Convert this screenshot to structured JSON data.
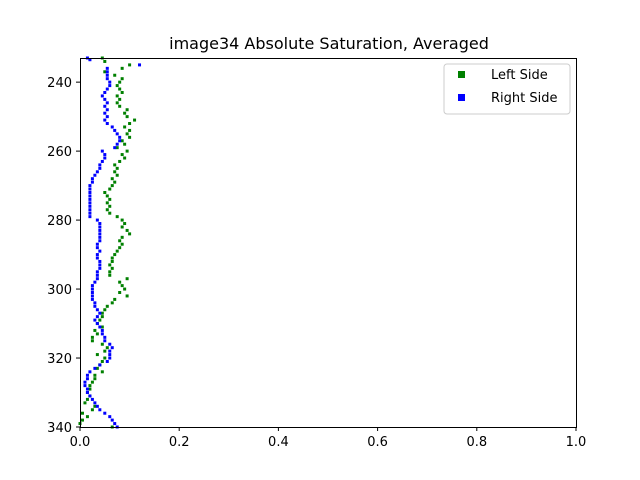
{
  "chart_data": {
    "type": "scatter",
    "title": "image34 Absolute Saturation, Averaged",
    "xlabel": "",
    "ylabel": "",
    "xlim": [
      0.0,
      1.0
    ],
    "ylim": [
      340,
      233
    ],
    "y_inverted": true,
    "grid": false,
    "legend_position": "top-right",
    "x_ticks": [
      0.0,
      0.2,
      0.4,
      0.6,
      0.8,
      1.0
    ],
    "x_tick_labels": [
      "0.0",
      "0.2",
      "0.4",
      "0.6",
      "0.8",
      "1.0"
    ],
    "y_ticks": [
      240,
      260,
      280,
      300,
      320,
      340
    ],
    "y_tick_labels": [
      "240",
      "260",
      "280",
      "300",
      "320",
      "340"
    ],
    "series": [
      {
        "name": "Left Side",
        "color": "#008000",
        "marker": "square",
        "points": [
          [
            0.045,
            233
          ],
          [
            0.05,
            234
          ],
          [
            0.1,
            235
          ],
          [
            0.085,
            236
          ],
          [
            0.05,
            237
          ],
          [
            0.07,
            238
          ],
          [
            0.085,
            239
          ],
          [
            0.08,
            240
          ],
          [
            0.075,
            241
          ],
          [
            0.08,
            242
          ],
          [
            0.085,
            243
          ],
          [
            0.075,
            244
          ],
          [
            0.08,
            245
          ],
          [
            0.075,
            246
          ],
          [
            0.08,
            247
          ],
          [
            0.095,
            248
          ],
          [
            0.09,
            249
          ],
          [
            0.095,
            250
          ],
          [
            0.11,
            251
          ],
          [
            0.1,
            252
          ],
          [
            0.09,
            253
          ],
          [
            0.1,
            254
          ],
          [
            0.095,
            255
          ],
          [
            0.1,
            256
          ],
          [
            0.085,
            257
          ],
          [
            0.09,
            258
          ],
          [
            0.075,
            259
          ],
          [
            0.095,
            260
          ],
          [
            0.085,
            261
          ],
          [
            0.09,
            262
          ],
          [
            0.08,
            263
          ],
          [
            0.07,
            264
          ],
          [
            0.075,
            265
          ],
          [
            0.07,
            266
          ],
          [
            0.075,
            267
          ],
          [
            0.065,
            268
          ],
          [
            0.07,
            269
          ],
          [
            0.065,
            270
          ],
          [
            0.06,
            271
          ],
          [
            0.05,
            272
          ],
          [
            0.055,
            273
          ],
          [
            0.06,
            274
          ],
          [
            0.055,
            275
          ],
          [
            0.06,
            276
          ],
          [
            0.055,
            277
          ],
          [
            0.06,
            278
          ],
          [
            0.075,
            279
          ],
          [
            0.085,
            280
          ],
          [
            0.09,
            281
          ],
          [
            0.085,
            282
          ],
          [
            0.095,
            283
          ],
          [
            0.1,
            284
          ],
          [
            0.085,
            285
          ],
          [
            0.08,
            286
          ],
          [
            0.085,
            287
          ],
          [
            0.08,
            288
          ],
          [
            0.075,
            289
          ],
          [
            0.07,
            290
          ],
          [
            0.065,
            291
          ],
          [
            0.065,
            292
          ],
          [
            0.06,
            293
          ],
          [
            0.065,
            294
          ],
          [
            0.06,
            295
          ],
          [
            0.06,
            296
          ],
          [
            0.095,
            297
          ],
          [
            0.08,
            298
          ],
          [
            0.085,
            299
          ],
          [
            0.09,
            300
          ],
          [
            0.08,
            301
          ],
          [
            0.095,
            302
          ],
          [
            0.07,
            303
          ],
          [
            0.065,
            304
          ],
          [
            0.055,
            305
          ],
          [
            0.05,
            306
          ],
          [
            0.045,
            307
          ],
          [
            0.045,
            308
          ],
          [
            0.04,
            309
          ],
          [
            0.035,
            310
          ],
          [
            0.045,
            311
          ],
          [
            0.03,
            312
          ],
          [
            0.035,
            313
          ],
          [
            0.025,
            314
          ],
          [
            0.025,
            315
          ],
          [
            0.045,
            316
          ],
          [
            0.055,
            317
          ],
          [
            0.05,
            318
          ],
          [
            0.035,
            319
          ],
          [
            0.05,
            320
          ],
          [
            0.045,
            321
          ],
          [
            0.04,
            322
          ],
          [
            0.035,
            323
          ],
          [
            0.045,
            324
          ],
          [
            0.03,
            325
          ],
          [
            0.03,
            326
          ],
          [
            0.025,
            327
          ],
          [
            0.02,
            328
          ],
          [
            0.02,
            329
          ],
          [
            0.015,
            330
          ],
          [
            0.02,
            331
          ],
          [
            0.015,
            332
          ],
          [
            0.01,
            333
          ],
          [
            0.03,
            334
          ],
          [
            0.025,
            335
          ],
          [
            0.005,
            336
          ],
          [
            0.015,
            337
          ],
          [
            0.005,
            338
          ],
          [
            0.0,
            339
          ],
          [
            0.065,
            340
          ]
        ]
      },
      {
        "name": "Right Side",
        "color": "#0000ff",
        "marker": "square",
        "points": [
          [
            0.015,
            233
          ],
          [
            0.02,
            233.5
          ],
          [
            0.12,
            235
          ],
          [
            0.055,
            236
          ],
          [
            0.055,
            237
          ],
          [
            0.055,
            238
          ],
          [
            0.055,
            239
          ],
          [
            0.06,
            240
          ],
          [
            0.06,
            241
          ],
          [
            0.055,
            242
          ],
          [
            0.05,
            243
          ],
          [
            0.045,
            244
          ],
          [
            0.05,
            245
          ],
          [
            0.055,
            246
          ],
          [
            0.05,
            247
          ],
          [
            0.055,
            248
          ],
          [
            0.05,
            249
          ],
          [
            0.055,
            250
          ],
          [
            0.05,
            251
          ],
          [
            0.055,
            252
          ],
          [
            0.065,
            253
          ],
          [
            0.07,
            254
          ],
          [
            0.075,
            255
          ],
          [
            0.08,
            256
          ],
          [
            0.08,
            257
          ],
          [
            0.075,
            258
          ],
          [
            0.07,
            259
          ],
          [
            0.045,
            260
          ],
          [
            0.05,
            261
          ],
          [
            0.05,
            262
          ],
          [
            0.045,
            263
          ],
          [
            0.04,
            264
          ],
          [
            0.04,
            265
          ],
          [
            0.035,
            266
          ],
          [
            0.03,
            267
          ],
          [
            0.025,
            268
          ],
          [
            0.025,
            269
          ],
          [
            0.02,
            270
          ],
          [
            0.02,
            271
          ],
          [
            0.02,
            272
          ],
          [
            0.02,
            273
          ],
          [
            0.02,
            274
          ],
          [
            0.02,
            275
          ],
          [
            0.02,
            276
          ],
          [
            0.02,
            277
          ],
          [
            0.02,
            278
          ],
          [
            0.02,
            279
          ],
          [
            0.035,
            280
          ],
          [
            0.04,
            281
          ],
          [
            0.04,
            282
          ],
          [
            0.04,
            283
          ],
          [
            0.04,
            284
          ],
          [
            0.04,
            285
          ],
          [
            0.04,
            286
          ],
          [
            0.035,
            287
          ],
          [
            0.035,
            288
          ],
          [
            0.04,
            289
          ],
          [
            0.035,
            290
          ],
          [
            0.035,
            291
          ],
          [
            0.04,
            292
          ],
          [
            0.04,
            293
          ],
          [
            0.04,
            294
          ],
          [
            0.035,
            295
          ],
          [
            0.035,
            296
          ],
          [
            0.035,
            297
          ],
          [
            0.03,
            298
          ],
          [
            0.025,
            299
          ],
          [
            0.025,
            300
          ],
          [
            0.025,
            301
          ],
          [
            0.025,
            302
          ],
          [
            0.025,
            303
          ],
          [
            0.03,
            304
          ],
          [
            0.03,
            305
          ],
          [
            0.035,
            306
          ],
          [
            0.04,
            307
          ],
          [
            0.035,
            308
          ],
          [
            0.03,
            309
          ],
          [
            0.035,
            310
          ],
          [
            0.04,
            311
          ],
          [
            0.045,
            312
          ],
          [
            0.045,
            313
          ],
          [
            0.05,
            314
          ],
          [
            0.05,
            315
          ],
          [
            0.06,
            316
          ],
          [
            0.065,
            317
          ],
          [
            0.06,
            318
          ],
          [
            0.06,
            319
          ],
          [
            0.06,
            320
          ],
          [
            0.055,
            321
          ],
          [
            0.04,
            322
          ],
          [
            0.03,
            323
          ],
          [
            0.02,
            324
          ],
          [
            0.015,
            325
          ],
          [
            0.015,
            326
          ],
          [
            0.01,
            327
          ],
          [
            0.01,
            328
          ],
          [
            0.015,
            329
          ],
          [
            0.015,
            330
          ],
          [
            0.02,
            331
          ],
          [
            0.025,
            332
          ],
          [
            0.03,
            333
          ],
          [
            0.035,
            334
          ],
          [
            0.04,
            335
          ],
          [
            0.05,
            336
          ],
          [
            0.06,
            337
          ],
          [
            0.065,
            338
          ],
          [
            0.07,
            339
          ],
          [
            0.075,
            340
          ]
        ]
      }
    ]
  }
}
